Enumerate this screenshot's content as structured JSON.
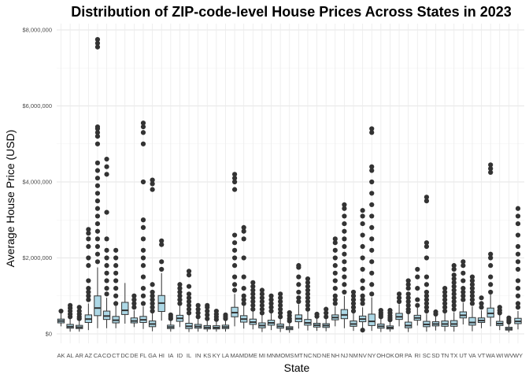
{
  "chart_data": {
    "type": "box",
    "title": "Distribution of ZIP-code-level House Prices Across States in 2023",
    "xlabel": "State",
    "ylabel": "Average House Price (USD)",
    "ylim": [
      0,
      8000000
    ],
    "yticks": [
      0,
      2000000,
      4000000,
      6000000,
      8000000
    ],
    "ytick_labels": [
      "$0",
      "$2,000,000",
      "$4,000,000",
      "$6,000,000",
      "$8,000,000"
    ],
    "grid": true,
    "fill_color": "#add8e6",
    "line_color": "#333333",
    "highlight_color": "#a6dbeb",
    "categories": [
      "AK",
      "AL",
      "AR",
      "AZ",
      "CA",
      "CO",
      "CT",
      "DC",
      "DE",
      "FL",
      "GA",
      "HI",
      "IA",
      "ID",
      "IL",
      "IN",
      "KS",
      "KY",
      "LA",
      "MA",
      "MD",
      "ME",
      "MI",
      "MN",
      "MO",
      "MS",
      "MT",
      "NC",
      "ND",
      "NE",
      "NH",
      "NJ",
      "NM",
      "NV",
      "NY",
      "OH",
      "OK",
      "OR",
      "PA",
      "RI",
      "SC",
      "SD",
      "TN",
      "TX",
      "UT",
      "VA",
      "VT",
      "WA",
      "WI",
      "WV",
      "WY"
    ],
    "boxes": [
      {
        "label": "AK",
        "q1": 290000,
        "median": 340000,
        "q3": 390000,
        "whisker_low": 200000,
        "whisker_high": 560000,
        "outliers": [
          600000
        ]
      },
      {
        "label": "AL",
        "q1": 150000,
        "median": 190000,
        "q3": 250000,
        "whisker_low": 60000,
        "whisker_high": 400000,
        "outliers": [
          450000,
          520000,
          600000,
          680000,
          750000
        ]
      },
      {
        "label": "AR",
        "q1": 140000,
        "median": 175000,
        "q3": 225000,
        "whisker_low": 60000,
        "whisker_high": 360000,
        "outliers": [
          400000,
          450000,
          520000,
          600000,
          700000
        ]
      },
      {
        "label": "AZ",
        "q1": 300000,
        "median": 390000,
        "q3": 500000,
        "whisker_low": 100000,
        "whisker_high": 800000,
        "outliers": [
          900000,
          1000000,
          1100000,
          1200000,
          1400000,
          1800000,
          2000000,
          2300000,
          2500000,
          2650000,
          2750000
        ]
      },
      {
        "label": "CA",
        "q1": 480000,
        "median": 680000,
        "q3": 1000000,
        "whisker_low": 150000,
        "whisker_high": 1750000,
        "outliers": [
          1900000,
          2100000,
          2300000,
          2500000,
          2700000,
          2900000,
          3100000,
          3300000,
          3500000,
          3700000,
          3900000,
          4100000,
          4300000,
          4500000,
          5000000,
          5200000,
          5300000,
          5400000,
          5450000,
          7550000,
          7650000,
          7750000
        ]
      },
      {
        "label": "CO",
        "q1": 380000,
        "median": 470000,
        "q3": 600000,
        "whisker_low": 150000,
        "whisker_high": 950000,
        "outliers": [
          1050000,
          1200000,
          1400000,
          1600000,
          1800000,
          2000000,
          2200000,
          2500000,
          3200000,
          4200000,
          4400000,
          4600000
        ]
      },
      {
        "label": "CT",
        "q1": 290000,
        "median": 360000,
        "q3": 460000,
        "whisker_low": 150000,
        "whisker_high": 750000,
        "outliers": [
          800000,
          1000000,
          1200000,
          1400000,
          1600000,
          1800000,
          2000000,
          2200000
        ]
      },
      {
        "label": "DC",
        "q1": 510000,
        "median": 620000,
        "q3": 830000,
        "whisker_low": 270000,
        "whisker_high": 1340000,
        "outliers": []
      },
      {
        "label": "DE",
        "q1": 290000,
        "median": 340000,
        "q3": 420000,
        "whisker_low": 180000,
        "whisker_high": 620000,
        "outliers": [
          700000,
          800000,
          900000,
          1000000
        ]
      },
      {
        "label": "FL",
        "q1": 300000,
        "median": 370000,
        "q3": 460000,
        "whisker_low": 130000,
        "whisker_high": 720000,
        "outliers": [
          800000,
          1000000,
          1200000,
          1500000,
          1800000,
          2000000,
          2200000,
          2500000,
          2800000,
          3000000,
          4000000,
          5000000,
          5300000,
          5450000,
          5550000
        ]
      },
      {
        "label": "GA",
        "q1": 190000,
        "median": 260000,
        "q3": 340000,
        "whisker_low": 70000,
        "whisker_high": 560000,
        "outliers": [
          600000,
          700000,
          800000,
          900000,
          1000000,
          1100000,
          1300000,
          3800000,
          3950000,
          4050000
        ]
      },
      {
        "label": "HI",
        "q1": 590000,
        "median": 810000,
        "q3": 1010000,
        "whisker_low": 350000,
        "whisker_high": 1600000,
        "outliers": [
          1700000,
          1900000,
          2350000,
          2450000
        ]
      },
      {
        "label": "IA",
        "q1": 140000,
        "median": 180000,
        "q3": 230000,
        "whisker_low": 60000,
        "whisker_high": 360000,
        "outliers": [
          400000,
          450000,
          500000
        ]
      },
      {
        "label": "ID",
        "q1": 330000,
        "median": 410000,
        "q3": 490000,
        "whisker_low": 180000,
        "whisker_high": 740000,
        "outliers": [
          800000,
          900000,
          1000000,
          1100000,
          1200000,
          1300000
        ]
      },
      {
        "label": "IL",
        "q1": 140000,
        "median": 200000,
        "q3": 280000,
        "whisker_low": 50000,
        "whisker_high": 490000,
        "outliers": [
          550000,
          650000,
          750000,
          850000,
          950000,
          1050000,
          1250000,
          1550000,
          1650000
        ]
      },
      {
        "label": "IN",
        "q1": 150000,
        "median": 195000,
        "q3": 250000,
        "whisker_low": 60000,
        "whisker_high": 400000,
        "outliers": [
          450000,
          550000,
          650000,
          750000
        ]
      },
      {
        "label": "KS",
        "q1": 130000,
        "median": 170000,
        "q3": 220000,
        "whisker_low": 60000,
        "whisker_high": 350000,
        "outliers": [
          400000,
          500000,
          600000,
          700000,
          750000
        ]
      },
      {
        "label": "KY",
        "q1": 130000,
        "median": 165000,
        "q3": 215000,
        "whisker_low": 60000,
        "whisker_high": 340000,
        "outliers": [
          380000,
          450000,
          520000,
          600000
        ]
      },
      {
        "label": "LA",
        "q1": 140000,
        "median": 180000,
        "q3": 230000,
        "whisker_low": 60000,
        "whisker_high": 370000,
        "outliers": [
          400000,
          450000,
          500000
        ]
      },
      {
        "label": "MA",
        "q1": 450000,
        "median": 560000,
        "q3": 700000,
        "whisker_low": 200000,
        "whisker_high": 1050000,
        "outliers": [
          1150000,
          1300000,
          1500000,
          1800000,
          2000000,
          2200000,
          2400000,
          2600000,
          3800000,
          4000000,
          4100000,
          4200000
        ]
      },
      {
        "label": "MD",
        "q1": 310000,
        "median": 390000,
        "q3": 480000,
        "whisker_low": 140000,
        "whisker_high": 740000,
        "outliers": [
          800000,
          900000,
          1000000,
          1200000,
          1500000,
          2000000,
          2500000,
          2700000,
          2800000
        ]
      },
      {
        "label": "ME",
        "q1": 250000,
        "median": 310000,
        "q3": 390000,
        "whisker_low": 120000,
        "whisker_high": 590000,
        "outliers": [
          650000,
          750000,
          850000,
          950000,
          1050000,
          1150000,
          1250000,
          1350000
        ]
      },
      {
        "label": "MI",
        "q1": 160000,
        "median": 220000,
        "q3": 290000,
        "whisker_low": 50000,
        "whisker_high": 490000,
        "outliers": [
          550000,
          650000,
          750000,
          850000,
          950000,
          1050000,
          1150000
        ]
      },
      {
        "label": "MN",
        "q1": 230000,
        "median": 290000,
        "q3": 360000,
        "whisker_low": 100000,
        "whisker_high": 550000,
        "outliers": [
          600000,
          700000,
          800000,
          900000,
          1000000
        ]
      },
      {
        "label": "MO",
        "q1": 150000,
        "median": 200000,
        "q3": 260000,
        "whisker_low": 50000,
        "whisker_high": 420000,
        "outliers": [
          450000,
          550000,
          650000,
          750000,
          850000,
          950000,
          1050000
        ]
      },
      {
        "label": "MS",
        "q1": 110000,
        "median": 150000,
        "q3": 190000,
        "whisker_low": 30000,
        "whisker_high": 300000,
        "outliers": [
          340000,
          400000,
          480000,
          560000
        ]
      },
      {
        "label": "MT",
        "q1": 320000,
        "median": 400000,
        "q3": 500000,
        "whisker_low": 140000,
        "whisker_high": 780000,
        "outliers": [
          850000,
          950000,
          1100000,
          1300000,
          1500000,
          1750000,
          1800000
        ]
      },
      {
        "label": "NC",
        "q1": 230000,
        "median": 290000,
        "q3": 380000,
        "whisker_low": 90000,
        "whisker_high": 600000,
        "outliers": [
          650000,
          750000,
          850000,
          950000,
          1050000,
          1150000,
          1250000,
          1350000,
          1450000
        ]
      },
      {
        "label": "ND",
        "q1": 180000,
        "median": 230000,
        "q3": 280000,
        "whisker_low": 80000,
        "whisker_high": 420000,
        "outliers": [
          460000,
          520000
        ]
      },
      {
        "label": "NE",
        "q1": 170000,
        "median": 220000,
        "q3": 270000,
        "whisker_low": 70000,
        "whisker_high": 410000,
        "outliers": [
          450000,
          550000,
          650000
        ]
      },
      {
        "label": "NH",
        "q1": 370000,
        "median": 430000,
        "q3": 500000,
        "whisker_low": 200000,
        "whisker_high": 720000,
        "outliers": [
          800000,
          900000,
          1000000,
          1200000,
          1400000,
          1600000,
          1800000,
          2000000,
          2200000,
          2400000,
          2500000
        ]
      },
      {
        "label": "NJ",
        "q1": 400000,
        "median": 500000,
        "q3": 640000,
        "whisker_low": 150000,
        "whisker_high": 1000000,
        "outliers": [
          1100000,
          1300000,
          1500000,
          1700000,
          1900000,
          2100000,
          2300000,
          2500000,
          2700000,
          2900000,
          3100000,
          3300000,
          3400000
        ]
      },
      {
        "label": "NM",
        "q1": 200000,
        "median": 260000,
        "q3": 340000,
        "whisker_low": 80000,
        "whisker_high": 540000,
        "outliers": [
          600000,
          700000,
          800000,
          900000,
          1000000,
          1100000
        ]
      },
      {
        "label": "NV",
        "q1": 320000,
        "median": 390000,
        "q3": 470000,
        "whisker_low": 150000,
        "whisker_high": 700000,
        "outliers": [
          100000,
          800000,
          900000,
          1000000,
          1200000,
          1400000,
          1700000,
          2000000,
          2300000,
          2600000,
          2900000,
          3100000,
          3250000
        ]
      },
      {
        "label": "NY",
        "q1": 220000,
        "median": 330000,
        "q3": 520000,
        "whisker_low": 80000,
        "whisker_high": 960000,
        "outliers": [
          1050000,
          1300000,
          1600000,
          1900000,
          2200000,
          2500000,
          2800000,
          3100000,
          3400000,
          3700000,
          4000000,
          4300000,
          4400000,
          5300000,
          5400000
        ]
      },
      {
        "label": "OH",
        "q1": 150000,
        "median": 200000,
        "q3": 260000,
        "whisker_low": 50000,
        "whisker_high": 420000,
        "outliers": [
          450000,
          500000,
          550000,
          620000
        ]
      },
      {
        "label": "OK",
        "q1": 130000,
        "median": 165000,
        "q3": 210000,
        "whisker_low": 60000,
        "whisker_high": 330000,
        "outliers": [
          370000,
          420000,
          480000,
          550000,
          620000
        ]
      },
      {
        "label": "OR",
        "q1": 380000,
        "median": 450000,
        "q3": 540000,
        "whisker_low": 200000,
        "whisker_high": 780000,
        "outliers": [
          850000,
          950000,
          1050000
        ]
      },
      {
        "label": "PA",
        "q1": 160000,
        "median": 220000,
        "q3": 310000,
        "whisker_low": 50000,
        "whisker_high": 520000,
        "outliers": [
          580000,
          650000,
          750000,
          850000,
          950000,
          1050000,
          1200000,
          1300000,
          1400000
        ]
      },
      {
        "label": "RI",
        "q1": 360000,
        "median": 420000,
        "q3": 490000,
        "whisker_low": 220000,
        "whisker_high": 690000,
        "outliers": [
          750000,
          900000,
          1200000,
          1500000,
          1700000
        ]
      },
      {
        "label": "SC",
        "q1": 190000,
        "median": 250000,
        "q3": 330000,
        "whisker_low": 60000,
        "whisker_high": 530000,
        "outliers": [
          600000,
          700000,
          800000,
          900000,
          1000000,
          1100000,
          1300000,
          1500000,
          2000000,
          2300000,
          2400000,
          3500000,
          3600000
        ]
      },
      {
        "label": "SD",
        "q1": 210000,
        "median": 260000,
        "q3": 320000,
        "whisker_low": 90000,
        "whisker_high": 480000,
        "outliers": [
          520000,
          580000
        ]
      },
      {
        "label": "TN",
        "q1": 200000,
        "median": 260000,
        "q3": 340000,
        "whisker_low": 70000,
        "whisker_high": 550000,
        "outliers": [
          600000,
          700000,
          800000,
          900000,
          1000000,
          1100000,
          1200000
        ]
      },
      {
        "label": "TX",
        "q1": 200000,
        "median": 260000,
        "q3": 350000,
        "whisker_low": 60000,
        "whisker_high": 570000,
        "outliers": [
          650000,
          750000,
          850000,
          950000,
          1050000,
          1150000,
          1250000,
          1350000,
          1450000,
          1550000,
          1700000,
          1800000
        ]
      },
      {
        "label": "UT",
        "q1": 420000,
        "median": 490000,
        "q3": 580000,
        "whisker_low": 250000,
        "whisker_high": 820000,
        "outliers": [
          900000,
          1000000,
          1100000,
          1200000,
          1400000,
          1600000,
          1800000,
          1900000
        ]
      },
      {
        "label": "VA",
        "q1": 230000,
        "median": 300000,
        "q3": 430000,
        "whisker_low": 70000,
        "whisker_high": 720000,
        "outliers": [
          800000,
          900000,
          1000000,
          1100000,
          1200000,
          1300000,
          1400000,
          1500000
        ]
      },
      {
        "label": "VT",
        "q1": 300000,
        "median": 350000,
        "q3": 420000,
        "whisker_low": 150000,
        "whisker_high": 620000,
        "outliers": [
          700000,
          800000,
          950000
        ]
      },
      {
        "label": "WA",
        "q1": 440000,
        "median": 540000,
        "q3": 680000,
        "whisker_low": 200000,
        "whisker_high": 1040000,
        "outliers": [
          1100000,
          1300000,
          1500000,
          1800000,
          2000000,
          2100000,
          4250000,
          4350000,
          4450000
        ]
      },
      {
        "label": "WI",
        "q1": 220000,
        "median": 270000,
        "q3": 330000,
        "whisker_low": 100000,
        "whisker_high": 500000,
        "outliers": [
          550000,
          620000,
          700000
        ]
      },
      {
        "label": "WV",
        "q1": 100000,
        "median": 135000,
        "q3": 175000,
        "whisker_low": 40000,
        "whisker_high": 280000,
        "outliers": [
          310000,
          360000,
          420000
        ]
      },
      {
        "label": "WY",
        "q1": 270000,
        "median": 330000,
        "q3": 410000,
        "whisker_low": 120000,
        "whisker_high": 600000,
        "outliers": [
          700000,
          800000,
          1000000,
          1200000,
          1400000,
          1700000,
          1900000,
          2100000,
          2300000,
          2600000,
          2900000,
          3100000,
          3300000
        ]
      }
    ]
  }
}
